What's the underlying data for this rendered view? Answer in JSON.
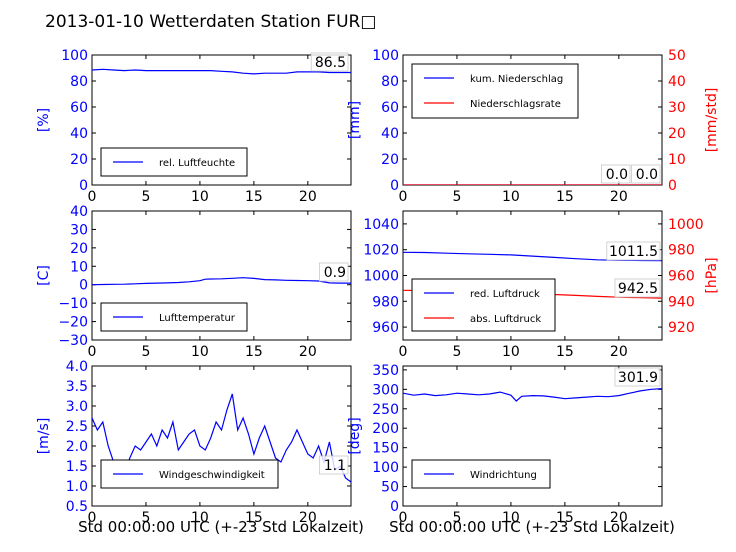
{
  "title": "2013-01-10 Wetterdaten Station FUR□",
  "xlabel": "Std 00:00:00 UTC (+-23 Std Lokalzeit)",
  "colors": {
    "blue": "#0000ff",
    "red": "#ff0000",
    "axis": "#000000"
  },
  "chart_data": [
    {
      "type": "line",
      "ylabel": "[%]",
      "xlim": [
        0,
        24
      ],
      "ylim": [
        0,
        100
      ],
      "xticks": [
        "0",
        "5",
        "10",
        "15",
        "20"
      ],
      "yticks": [
        "0",
        "20",
        "40",
        "60",
        "80",
        "100"
      ],
      "legend": [
        "rel. Luftfeuchte"
      ],
      "legend_position": "lower-left",
      "last_value_labels": [
        "86.5"
      ],
      "series": [
        {
          "name": "rel. Luftfeuchte",
          "axis": "left",
          "color": "blue",
          "x": [
            0,
            1,
            2,
            3,
            4,
            5,
            6,
            7,
            8,
            9,
            10,
            11,
            12,
            13,
            14,
            15,
            16,
            17,
            18,
            19,
            20,
            21,
            22,
            23,
            24
          ],
          "y": [
            88.5,
            89,
            88.5,
            88,
            88.5,
            88,
            88,
            88,
            88,
            88,
            88,
            88,
            87.5,
            87,
            86,
            85.5,
            86,
            86,
            86,
            87,
            87,
            87,
            86.5,
            86.5,
            86.5
          ]
        }
      ]
    },
    {
      "type": "line",
      "ylabel": "[mm]",
      "ylabel2": "[mm/std]",
      "xlim": [
        0,
        24
      ],
      "ylim": [
        0,
        100
      ],
      "ylim2": [
        0,
        50
      ],
      "xticks": [
        "0",
        "5",
        "10",
        "15",
        "20"
      ],
      "yticks": [
        "0",
        "20",
        "40",
        "60",
        "80",
        "100"
      ],
      "yticks2": [
        "0",
        "10",
        "20",
        "30",
        "40",
        "50"
      ],
      "legend": [
        "kum. Niederschlag",
        "Niederschlagsrate"
      ],
      "legend_position": "upper-left",
      "last_value_labels": [
        "0.0",
        "0.0"
      ],
      "series": [
        {
          "name": "kum. Niederschlag",
          "axis": "left",
          "color": "blue",
          "x": [
            0,
            24
          ],
          "y": [
            0,
            0
          ]
        },
        {
          "name": "Niederschlagsrate",
          "axis": "right",
          "color": "red",
          "x": [
            0,
            24
          ],
          "y": [
            0,
            0
          ]
        }
      ]
    },
    {
      "type": "line",
      "ylabel": "[C]",
      "xlim": [
        0,
        24
      ],
      "ylim": [
        -30,
        40
      ],
      "xticks": [
        "0",
        "5",
        "10",
        "15",
        "20"
      ],
      "yticks": [
        "−30",
        "−20",
        "−10",
        "0",
        "10",
        "20",
        "30",
        "40"
      ],
      "legend": [
        "Lufttemperatur"
      ],
      "legend_position": "lower-left",
      "last_value_labels": [
        "0.9"
      ],
      "series": [
        {
          "name": "Lufttemperatur",
          "axis": "left",
          "color": "blue",
          "x": [
            0,
            1,
            2,
            3,
            4,
            5,
            6,
            7,
            8,
            9,
            10,
            10.5,
            11,
            12,
            13,
            14,
            15,
            16,
            17,
            18,
            19,
            20,
            21,
            22,
            23,
            24
          ],
          "y": [
            0,
            0.1,
            0.2,
            0.3,
            0.5,
            0.7,
            0.9,
            1.0,
            1.2,
            1.6,
            2.2,
            3.0,
            3.1,
            3.2,
            3.5,
            3.8,
            3.4,
            2.8,
            2.6,
            2.4,
            2.3,
            2.2,
            2.0,
            1.0,
            0.9,
            0.9
          ]
        }
      ]
    },
    {
      "type": "line",
      "ylabel2": "[hPa]",
      "xlim": [
        0,
        24
      ],
      "ylim": [
        950,
        1050
      ],
      "ylim2": [
        910,
        1010
      ],
      "xticks": [
        "0",
        "5",
        "10",
        "15",
        "20"
      ],
      "yticks": [
        "960",
        "980",
        "1000",
        "1020",
        "1040"
      ],
      "yticks2": [
        "920",
        "940",
        "960",
        "980",
        "1000"
      ],
      "legend": [
        "red. Luftdruck",
        "abs. Luftdruck"
      ],
      "legend_position": "lower-left",
      "last_value_labels": [
        "1011.5",
        "942.5"
      ],
      "series": [
        {
          "name": "red. Luftdruck",
          "axis": "left",
          "color": "blue",
          "x": [
            0,
            2,
            4,
            6,
            8,
            10,
            12,
            14,
            16,
            18,
            20,
            22,
            24
          ],
          "y": [
            1018,
            1017.8,
            1017.3,
            1016.8,
            1016.4,
            1016,
            1015,
            1014,
            1013,
            1012.2,
            1011.8,
            1011.6,
            1011.5
          ]
        },
        {
          "name": "abs. Luftdruck",
          "axis": "right",
          "color": "red",
          "x": [
            0,
            2,
            4,
            6,
            8,
            10,
            12,
            14,
            16,
            18,
            20,
            22,
            24
          ],
          "y": [
            948.5,
            948.3,
            948,
            947.6,
            947.2,
            946.8,
            946,
            945.3,
            944.6,
            943.8,
            943.2,
            942.8,
            942.5
          ]
        }
      ]
    },
    {
      "type": "line",
      "ylabel": "[m/s]",
      "xlim": [
        0,
        24
      ],
      "ylim": [
        0.5,
        4.0
      ],
      "xticks": [
        "0",
        "5",
        "10",
        "15",
        "20"
      ],
      "yticks": [
        "0.5",
        "1.0",
        "1.5",
        "2.0",
        "2.5",
        "3.0",
        "3.5",
        "4.0"
      ],
      "legend": [
        "Windgeschwindigkeit"
      ],
      "legend_position": "lower-left",
      "last_value_labels": [
        "1.1"
      ],
      "series": [
        {
          "name": "Windgeschwindigkeit",
          "axis": "left",
          "color": "blue",
          "x": [
            0,
            0.5,
            1,
            1.5,
            2,
            2.5,
            3,
            3.5,
            4,
            4.5,
            5,
            5.5,
            6,
            6.5,
            7,
            7.5,
            8,
            8.5,
            9,
            9.5,
            10,
            10.5,
            11,
            11.5,
            12,
            12.5,
            13,
            13.5,
            14,
            14.5,
            15,
            15.5,
            16,
            16.5,
            17,
            17.5,
            18,
            18.5,
            19,
            19.5,
            20,
            20.5,
            21,
            21.5,
            22,
            22.5,
            23,
            23.5,
            24
          ],
          "y": [
            2.7,
            2.4,
            2.6,
            2.0,
            1.6,
            1.4,
            1.3,
            1.7,
            2.0,
            1.9,
            2.1,
            2.3,
            2.0,
            2.4,
            2.2,
            2.6,
            1.9,
            2.1,
            2.3,
            2.4,
            2.0,
            1.9,
            2.2,
            2.6,
            2.4,
            2.9,
            3.3,
            2.4,
            2.7,
            2.3,
            1.8,
            2.2,
            2.5,
            2.1,
            1.7,
            1.6,
            1.9,
            2.1,
            2.4,
            2.1,
            1.8,
            1.7,
            2.0,
            1.6,
            2.1,
            1.4,
            1.5,
            1.2,
            1.1
          ]
        }
      ]
    },
    {
      "type": "line",
      "ylabel": "[deg]",
      "xlim": [
        0,
        24
      ],
      "ylim": [
        0,
        360
      ],
      "xticks": [
        "0",
        "5",
        "10",
        "15",
        "20"
      ],
      "yticks": [
        "0",
        "50",
        "100",
        "150",
        "200",
        "250",
        "300",
        "350"
      ],
      "legend": [
        "Windrichtung"
      ],
      "legend_position": "lower-left",
      "last_value_labels": [
        "301.9"
      ],
      "series": [
        {
          "name": "Windrichtung",
          "axis": "left",
          "color": "blue",
          "x": [
            0,
            1,
            2,
            3,
            4,
            5,
            6,
            7,
            8,
            9,
            10,
            10.5,
            11,
            12,
            13,
            14,
            15,
            16,
            17,
            18,
            19,
            20,
            21,
            22,
            23,
            24
          ],
          "y": [
            290,
            285,
            288,
            284,
            286,
            290,
            288,
            286,
            288,
            293,
            285,
            270,
            282,
            284,
            283,
            280,
            276,
            278,
            280,
            282,
            281,
            284,
            290,
            296,
            300,
            301.9
          ]
        }
      ]
    }
  ]
}
